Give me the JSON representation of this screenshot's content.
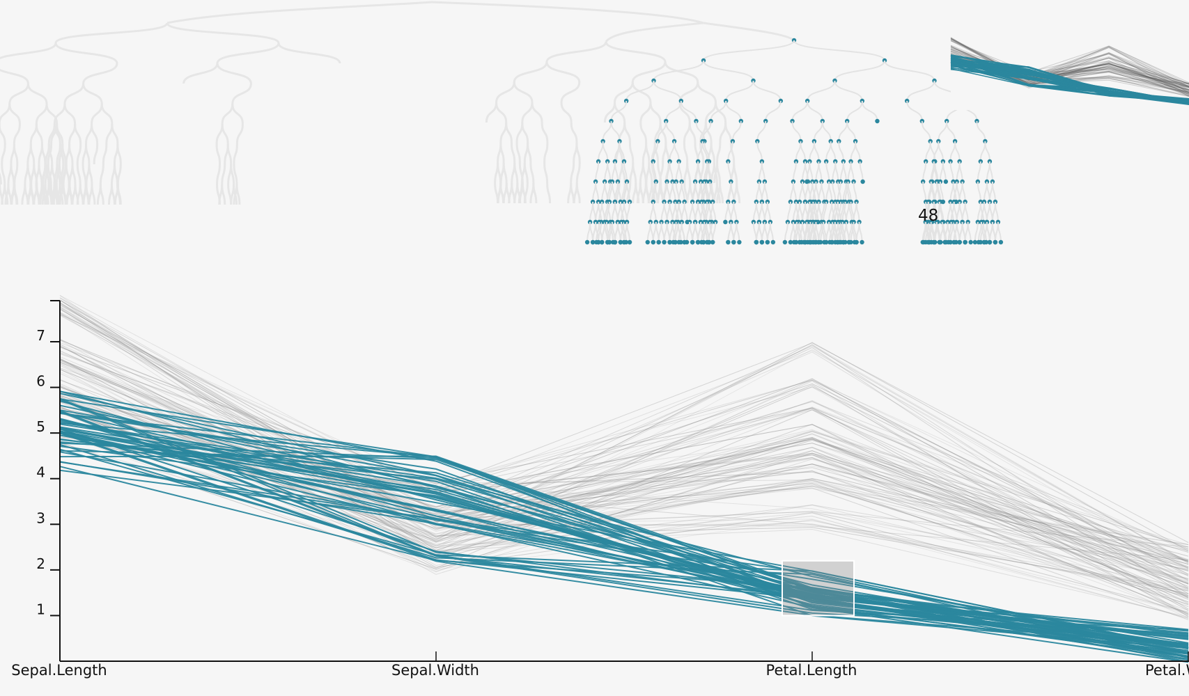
{
  "chart_data": [
    {
      "type": "parallel-coordinates",
      "axes": [
        "Sepal.Length",
        "Sepal.Width",
        "Petal.Length",
        "Petal.Width"
      ],
      "y_ticks": [
        "1",
        "2",
        "3",
        "4",
        "5",
        "6",
        "7"
      ],
      "ylim": [
        0,
        7.9
      ],
      "colors": {
        "highlight": "#2b879e",
        "context": "#8a8a8a",
        "brush_fill": "#8c8c8c",
        "axis": "#111111"
      },
      "brush": {
        "axis": "Petal.Length",
        "range": [
          1.0,
          2.2
        ]
      },
      "highlighted_profile": {
        "Sepal.Length": [
          4.3,
          4.6,
          4.8,
          5.0,
          5.1,
          5.2,
          5.4,
          5.5,
          5.8
        ],
        "Sepal.Width": [
          2.3,
          3.0,
          3.2,
          3.4,
          3.5,
          3.7,
          3.9,
          4.1,
          4.4
        ],
        "Petal.Length": [
          1.1,
          1.3,
          1.4,
          1.5,
          1.6,
          1.9
        ],
        "Petal.Width": [
          0.1,
          0.2,
          0.3,
          0.4,
          0.6
        ]
      },
      "context_profile": {
        "Sepal.Length": [
          4.9,
          5.5,
          5.8,
          6.1,
          6.3,
          6.5,
          6.7,
          7.0,
          7.7,
          7.9
        ],
        "Sepal.Width": [
          2.0,
          2.3,
          2.5,
          2.7,
          2.8,
          3.0,
          3.1,
          3.3,
          3.8
        ],
        "Petal.Length": [
          3.0,
          3.3,
          3.9,
          4.2,
          4.5,
          4.8,
          5.1,
          5.6,
          6.1,
          6.9
        ],
        "Petal.Width": [
          1.0,
          1.2,
          1.4,
          1.6,
          1.8,
          2.1,
          2.3,
          2.5
        ]
      }
    },
    {
      "type": "tree",
      "selected_count": "48"
    }
  ]
}
